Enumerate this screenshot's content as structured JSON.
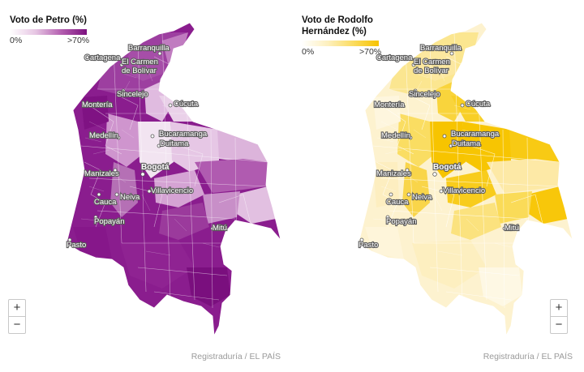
{
  "maps": [
    {
      "id": "petro",
      "legend": {
        "title_line1": "Voto de Petro (%)",
        "title_line2": "",
        "min_label": "0%",
        "max_label": ">70%"
      },
      "colors": {
        "low": "#f3e6f1",
        "mid": "#b45fb0",
        "high": "#7c117f"
      },
      "cities": [
        "Barranquilla",
        "Cartagena",
        "El Carmen",
        "de Bolívar",
        "Sincelejo",
        "Cúcuta",
        "Montería",
        "Medellín",
        "Bucaramanga",
        "Duitama",
        "Bogotá",
        "Manizales",
        "Villavicencio",
        "Cauca",
        "Neiva",
        "Popayán",
        "Pasto",
        "Mitú"
      ],
      "zoom": {
        "in_label": "+",
        "out_label": "−"
      },
      "source": "Registraduría / EL PAÍS"
    },
    {
      "id": "hernandez",
      "legend": {
        "title_line1": "Voto de Rodolfo",
        "title_line2": "Hernández (%)",
        "min_label": "0%",
        "max_label": ">70%"
      },
      "colors": {
        "low": "#fdf6dc",
        "mid": "#fbe27a",
        "high": "#f7c300"
      },
      "cities": [
        "Barranquilla",
        "Cartagena",
        "El Carmen",
        "de Bolívar",
        "Sincelejo",
        "Cúcuta",
        "Montería",
        "Medellín",
        "Bucaramanga",
        "Duitama",
        "Bogotá",
        "Manizales",
        "Villavicencio",
        "Cauca",
        "Neiva",
        "Popayán",
        "Pasto",
        "Mitú"
      ],
      "zoom": {
        "in_label": "+",
        "out_label": "−"
      },
      "source": "Registraduría / EL PAÍS"
    }
  ]
}
